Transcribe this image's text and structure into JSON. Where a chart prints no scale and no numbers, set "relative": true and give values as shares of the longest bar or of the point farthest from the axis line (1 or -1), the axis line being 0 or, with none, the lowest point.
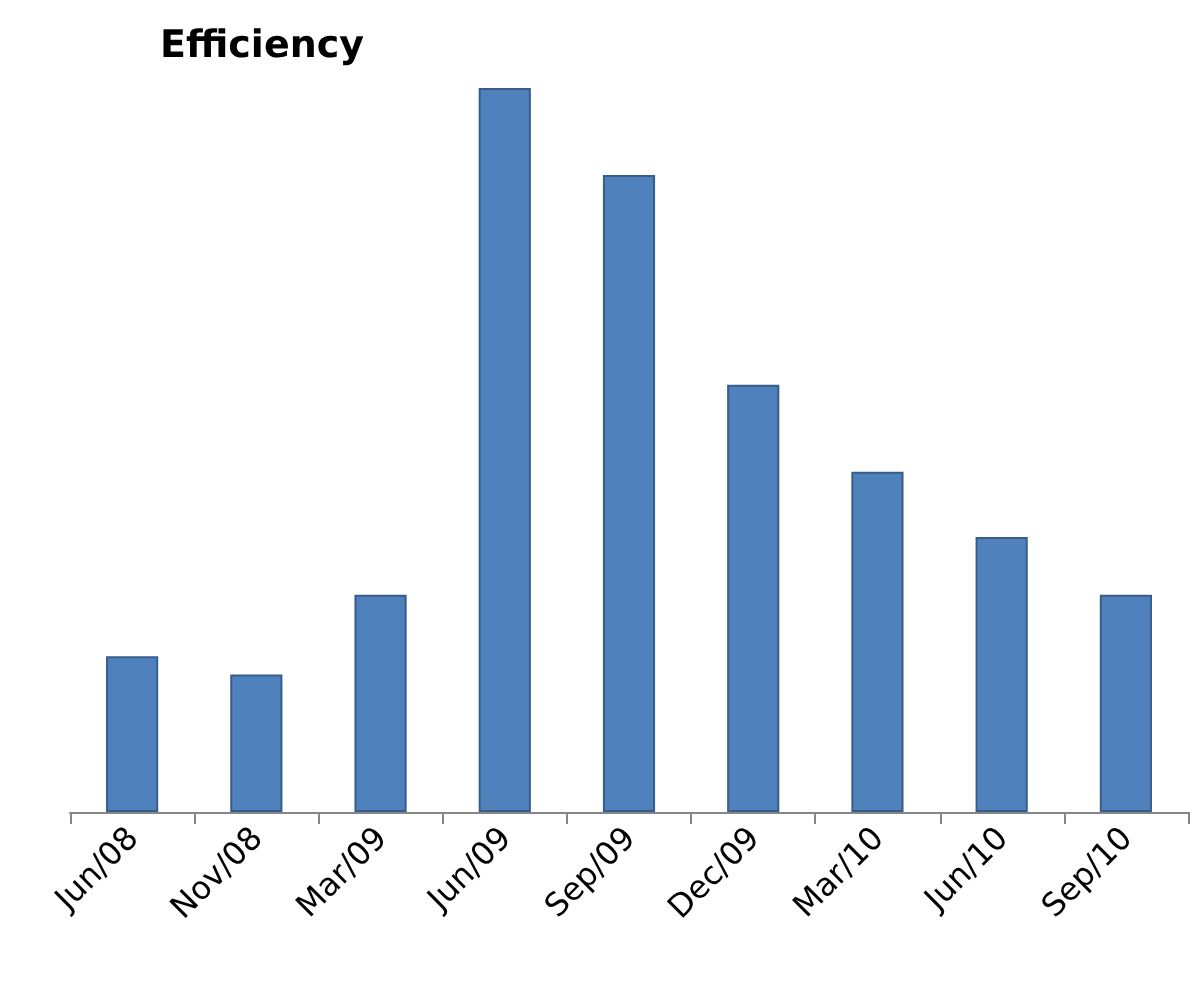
{
  "chart_data": {
    "type": "bar",
    "title": "Efficiency",
    "relative": true,
    "categories": [
      "Jun/08",
      "Nov/08",
      "Mar/09",
      "Jun/09",
      "Sep/09",
      "Dec/09",
      "Mar/10",
      "Jun/10",
      "Sep/10"
    ],
    "values": [
      0.215,
      0.19,
      0.3,
      1,
      0.88,
      0.59,
      0.47,
      0.38,
      0.3
    ],
    "color": "#4f81bd",
    "grid": false
  }
}
